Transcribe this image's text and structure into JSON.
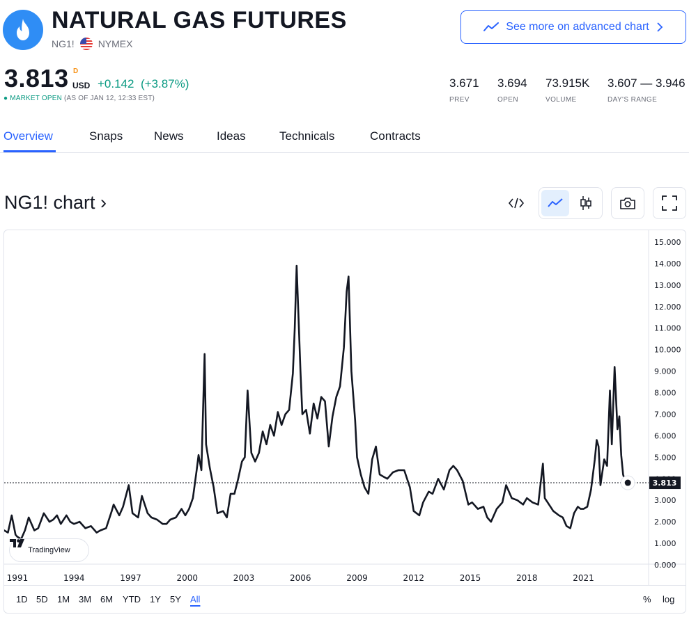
{
  "header": {
    "title": "NATURAL GAS FUTURES",
    "symbol": "NG1!",
    "exchange": "NYMEX",
    "advanced_chart_label": "See more on advanced chart",
    "brand_color": "#2f8df5",
    "accent_color": "#2962ff"
  },
  "quote": {
    "price": "3.813",
    "delay_flag": "D",
    "currency": "USD",
    "change": "+0.142",
    "change_pct": "(+3.87%)",
    "market_status": "MARKET OPEN",
    "as_of": "(AS OF JAN 12, 12:33 EST)",
    "up_color": "#089981"
  },
  "stats": [
    {
      "value": "3.671",
      "label": "PREV"
    },
    {
      "value": "3.694",
      "label": "OPEN"
    },
    {
      "value": "73.915K",
      "label": "VOLUME"
    },
    {
      "value": "3.607 — 3.946",
      "label": "DAY'S RANGE"
    }
  ],
  "tabs": [
    "Overview",
    "Snaps",
    "News",
    "Ideas",
    "Technicals",
    "Contracts"
  ],
  "active_tab": "Overview",
  "chart_section": {
    "heading": "NG1! chart ›",
    "tools": [
      "code-icon",
      "line-chart-icon",
      "candlestick-icon",
      "camera-icon",
      "fullscreen-icon"
    ],
    "branding": "TradingView",
    "ranges": [
      "1D",
      "5D",
      "1M",
      "3M",
      "6M",
      "YTD",
      "1Y",
      "5Y",
      "All"
    ],
    "active_range": "All",
    "percent_label": "%",
    "log_label": "log"
  },
  "chart_data": {
    "type": "line",
    "title": "",
    "xlabel": "",
    "ylabel": "",
    "ylim": [
      0,
      15
    ],
    "xlim": [
      1990.3,
      2024.45
    ],
    "x_ticks": [
      "1991",
      "1994",
      "1997",
      "2000",
      "2003",
      "2006",
      "2009",
      "2012",
      "2015",
      "2018",
      "2021"
    ],
    "y_ticks": [
      "15.000",
      "14.000",
      "13.000",
      "12.000",
      "11.000",
      "10.000",
      "9.000",
      "8.000",
      "7.000",
      "6.000",
      "5.000",
      "4.000",
      "3.000",
      "2.000",
      "1.000",
      "0.000"
    ],
    "last_value": "3.813",
    "line_color": "#131722",
    "series": [
      {
        "x": [
          1990.3,
          1990.5,
          1990.7,
          1990.9,
          1991.0,
          1991.2,
          1991.4,
          1991.6,
          1991.9,
          1992.1,
          1992.4,
          1992.7,
          1992.9,
          1993.1,
          1993.3,
          1993.6,
          1993.8,
          1994.0,
          1994.3,
          1994.6,
          1994.9,
          1995.2,
          1995.4,
          1995.7,
          1996.0,
          1996.1,
          1996.4,
          1996.6,
          1996.9,
          1997.1,
          1997.4,
          1997.6,
          1997.9,
          1998.1,
          1998.4,
          1998.7,
          1998.9,
          1999.1,
          1999.4,
          1999.7,
          1999.9,
          2000.1,
          2000.3,
          2000.5,
          2000.6,
          2000.75,
          2000.92,
          2001.0,
          2001.2,
          2001.4,
          2001.6,
          2001.9,
          2002.1,
          2002.3,
          2002.5,
          2002.7,
          2002.9,
          2003.05,
          2003.2,
          2003.4,
          2003.6,
          2003.8,
          2004.0,
          2004.2,
          2004.4,
          2004.6,
          2004.8,
          2005.0,
          2005.2,
          2005.4,
          2005.6,
          2005.7,
          2005.8,
          2005.9,
          2006.0,
          2006.1,
          2006.3,
          2006.5,
          2006.7,
          2006.9,
          2007.1,
          2007.3,
          2007.5,
          2007.7,
          2007.9,
          2008.1,
          2008.3,
          2008.45,
          2008.55,
          2008.7,
          2008.9,
          2009.0,
          2009.2,
          2009.4,
          2009.6,
          2009.8,
          2010.0,
          2010.2,
          2010.4,
          2010.6,
          2010.9,
          2011.2,
          2011.5,
          2011.8,
          2012.0,
          2012.3,
          2012.5,
          2012.8,
          2013.0,
          2013.3,
          2013.6,
          2013.9,
          2014.1,
          2014.3,
          2014.6,
          2014.9,
          2015.1,
          2015.4,
          2015.7,
          2015.9,
          2016.1,
          2016.4,
          2016.7,
          2016.9,
          2017.2,
          2017.5,
          2017.8,
          2018.0,
          2018.3,
          2018.6,
          2018.85,
          2018.95,
          2019.1,
          2019.4,
          2019.7,
          2019.9,
          2020.1,
          2020.3,
          2020.5,
          2020.7,
          2020.85,
          2021.0,
          2021.2,
          2021.4,
          2021.6,
          2021.7,
          2021.8,
          2021.9,
          2022.1,
          2022.25,
          2022.4,
          2022.5,
          2022.65,
          2022.8,
          2022.9,
          2023.0,
          2023.1,
          2023.2,
          2023.35
        ],
        "values": [
          1.6,
          1.5,
          2.3,
          1.4,
          1.3,
          1.2,
          1.6,
          2.2,
          1.6,
          1.7,
          2.4,
          2.0,
          2.1,
          2.3,
          1.9,
          2.3,
          2.0,
          1.9,
          2.0,
          1.7,
          1.8,
          1.5,
          1.6,
          1.7,
          2.5,
          2.8,
          2.3,
          2.7,
          3.7,
          2.4,
          2.2,
          3.2,
          2.4,
          2.2,
          2.1,
          1.9,
          1.9,
          2.1,
          2.2,
          2.6,
          2.3,
          2.6,
          3.1,
          4.4,
          5.1,
          4.4,
          9.8,
          5.6,
          4.5,
          3.6,
          2.4,
          2.5,
          2.2,
          3.3,
          3.3,
          4.0,
          4.8,
          5.0,
          8.1,
          5.2,
          4.8,
          5.2,
          6.2,
          5.6,
          6.5,
          6.0,
          7.1,
          6.5,
          7.0,
          7.2,
          8.9,
          11.0,
          13.9,
          11.5,
          9.0,
          7.0,
          7.2,
          6.1,
          7.5,
          6.8,
          7.8,
          7.6,
          5.5,
          6.9,
          7.8,
          8.3,
          10.1,
          12.7,
          13.4,
          9.0,
          6.7,
          5.0,
          4.2,
          3.6,
          3.3,
          4.9,
          5.5,
          4.2,
          4.1,
          4.0,
          4.3,
          4.4,
          4.4,
          3.6,
          2.5,
          2.3,
          2.9,
          3.4,
          3.3,
          4.0,
          3.5,
          4.4,
          4.6,
          4.4,
          3.9,
          2.8,
          2.9,
          2.6,
          2.7,
          2.2,
          2.0,
          2.6,
          2.9,
          3.7,
          3.1,
          3.0,
          2.8,
          3.1,
          2.9,
          2.8,
          4.7,
          3.1,
          2.9,
          2.5,
          2.3,
          2.2,
          1.8,
          1.7,
          2.4,
          2.7,
          2.6,
          2.6,
          2.7,
          3.5,
          4.9,
          5.8,
          5.5,
          3.7,
          4.9,
          4.6,
          8.1,
          5.6,
          9.2,
          6.3,
          6.9,
          5.1,
          4.2,
          3.9,
          3.813
        ]
      }
    ]
  }
}
